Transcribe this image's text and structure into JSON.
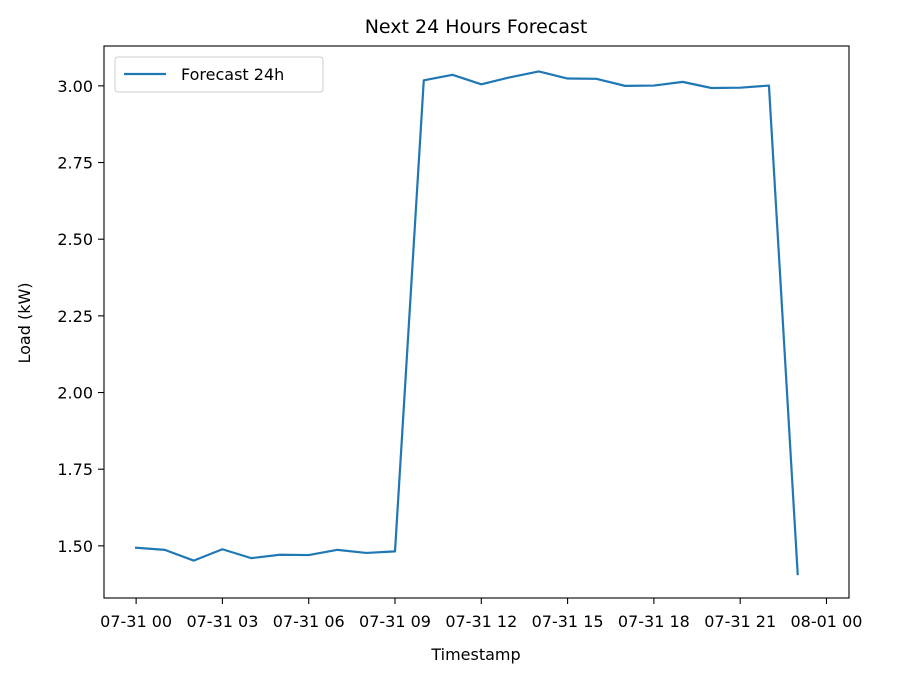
{
  "chart_data": {
    "type": "line",
    "title": "Next 24 Hours Forecast",
    "xlabel": "Timestamp",
    "ylabel": "Load (kW)",
    "legend_position": "upper-left",
    "grid": false,
    "line_color": "#1f77b4",
    "xlim": [
      "07-30 22:53",
      "08-01 00:47"
    ],
    "ylim": [
      1.33,
      3.13
    ],
    "xticks": [
      {
        "value": "07-31 00:00",
        "label": "07-31 00"
      },
      {
        "value": "07-31 03:00",
        "label": "07-31 03"
      },
      {
        "value": "07-31 06:00",
        "label": "07-31 06"
      },
      {
        "value": "07-31 09:00",
        "label": "07-31 09"
      },
      {
        "value": "07-31 12:00",
        "label": "07-31 12"
      },
      {
        "value": "07-31 15:00",
        "label": "07-31 15"
      },
      {
        "value": "07-31 18:00",
        "label": "07-31 18"
      },
      {
        "value": "07-31 21:00",
        "label": "07-31 21"
      },
      {
        "value": "08-01 00:00",
        "label": "08-01 00"
      }
    ],
    "yticks": [
      {
        "value": 1.5,
        "label": "1.50"
      },
      {
        "value": 1.75,
        "label": "1.75"
      },
      {
        "value": 2.0,
        "label": "2.00"
      },
      {
        "value": 2.25,
        "label": "2.25"
      },
      {
        "value": 2.5,
        "label": "2.50"
      },
      {
        "value": 2.75,
        "label": "2.75"
      },
      {
        "value": 3.0,
        "label": "3.00"
      }
    ],
    "series": [
      {
        "name": "Forecast 24h",
        "x": [
          "07-31 00:00",
          "07-31 01:00",
          "07-31 02:00",
          "07-31 03:00",
          "07-31 04:00",
          "07-31 05:00",
          "07-31 06:00",
          "07-31 07:00",
          "07-31 08:00",
          "07-31 09:00",
          "07-31 10:00",
          "07-31 11:00",
          "07-31 12:00",
          "07-31 13:00",
          "07-31 14:00",
          "07-31 15:00",
          "07-31 16:00",
          "07-31 17:00",
          "07-31 18:00",
          "07-31 19:00",
          "07-31 20:00",
          "07-31 21:00",
          "07-31 22:00",
          "07-31 23:00"
        ],
        "values": [
          1.494,
          1.487,
          1.452,
          1.489,
          1.46,
          1.471,
          1.47,
          1.487,
          1.477,
          1.482,
          3.018,
          3.036,
          3.005,
          3.028,
          3.047,
          3.024,
          3.023,
          3.0,
          3.001,
          3.013,
          2.993,
          2.994,
          3.001,
          1.408
        ]
      }
    ]
  }
}
